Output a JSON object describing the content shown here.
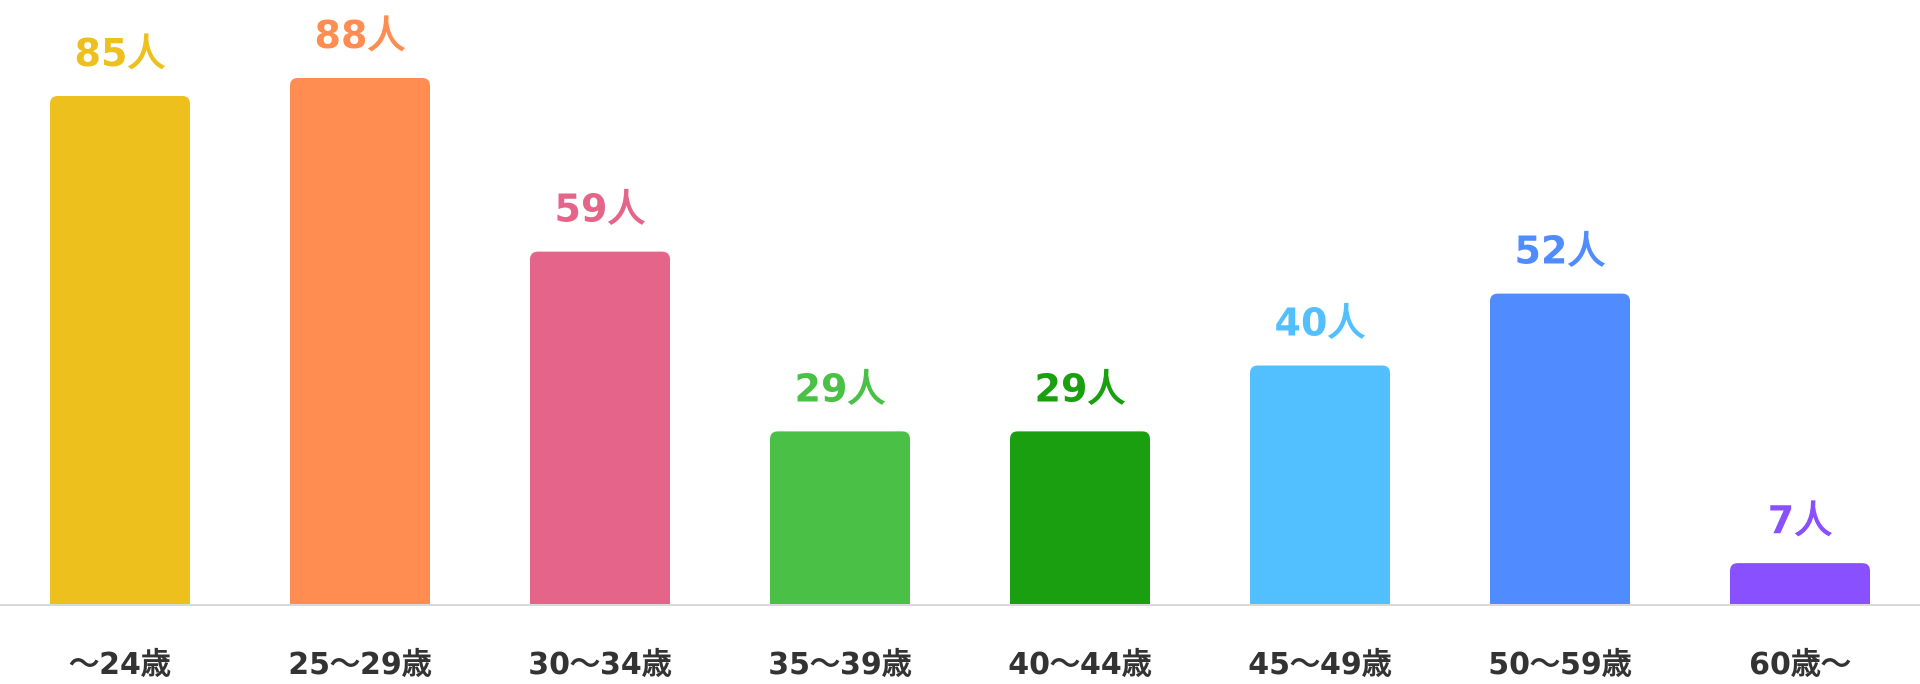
{
  "chart_data": {
    "type": "bar",
    "unit": "人",
    "categories": [
      "〜24歳",
      "25〜29歳",
      "30〜34歳",
      "35〜39歳",
      "40〜44歳",
      "45〜49歳",
      "50〜59歳",
      "60歳〜"
    ],
    "values": [
      85,
      88,
      59,
      29,
      29,
      40,
      52,
      7
    ],
    "data_labels": [
      "85人",
      "88人",
      "59人",
      "29人",
      "29人",
      "40人",
      "52人",
      "7人"
    ],
    "colors": [
      "#EDC01E",
      "#FF8C50",
      "#E5658A",
      "#4AC146",
      "#1A9F11",
      "#52BFFE",
      "#508BFF",
      "#8950FF"
    ],
    "ylim": [
      0,
      88
    ],
    "grid": false,
    "legend": "none",
    "title": "",
    "xlabel": "",
    "ylabel": ""
  }
}
